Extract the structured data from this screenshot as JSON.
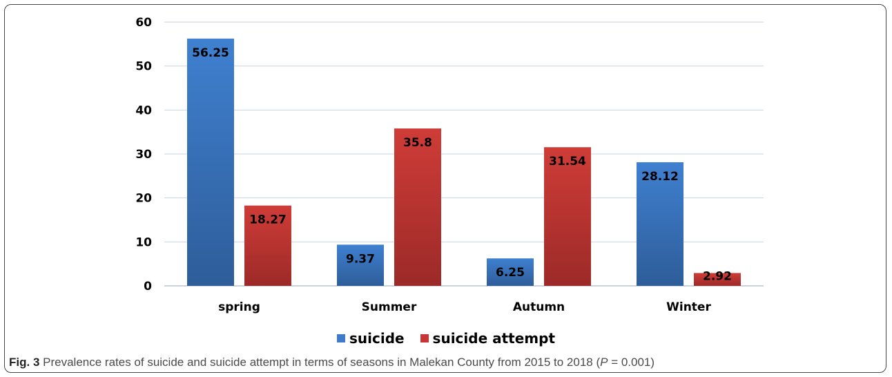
{
  "chart_data": {
    "type": "bar",
    "categories": [
      "spring",
      "Summer",
      "Autumn",
      "Winter"
    ],
    "series": [
      {
        "name": "suicide",
        "values": [
          56.25,
          9.37,
          6.25,
          28.12
        ],
        "color": "#3e7cc9"
      },
      {
        "name": "suicide attempt",
        "values": [
          18.27,
          35.8,
          31.54,
          2.92
        ],
        "color": "#c73633"
      }
    ],
    "data_labels": [
      [
        "56.25",
        "9.37",
        "6.25",
        "28.12"
      ],
      [
        "18.27",
        "35.8",
        "31.54",
        "2.92"
      ]
    ],
    "ylim": [
      0,
      60
    ],
    "yticks": [
      0,
      10,
      20,
      30,
      40,
      50,
      60
    ],
    "grid": true,
    "legend_position": "bottom",
    "xlabel": "",
    "ylabel": ""
  },
  "caption": {
    "fig_label": "Fig. 3",
    "text": " Prevalence rates of suicide and suicide attempt in terms of seasons in Malekan County from 2015 to 2018 (",
    "p_symbol": "P",
    "p_value": " = 0.001)"
  }
}
